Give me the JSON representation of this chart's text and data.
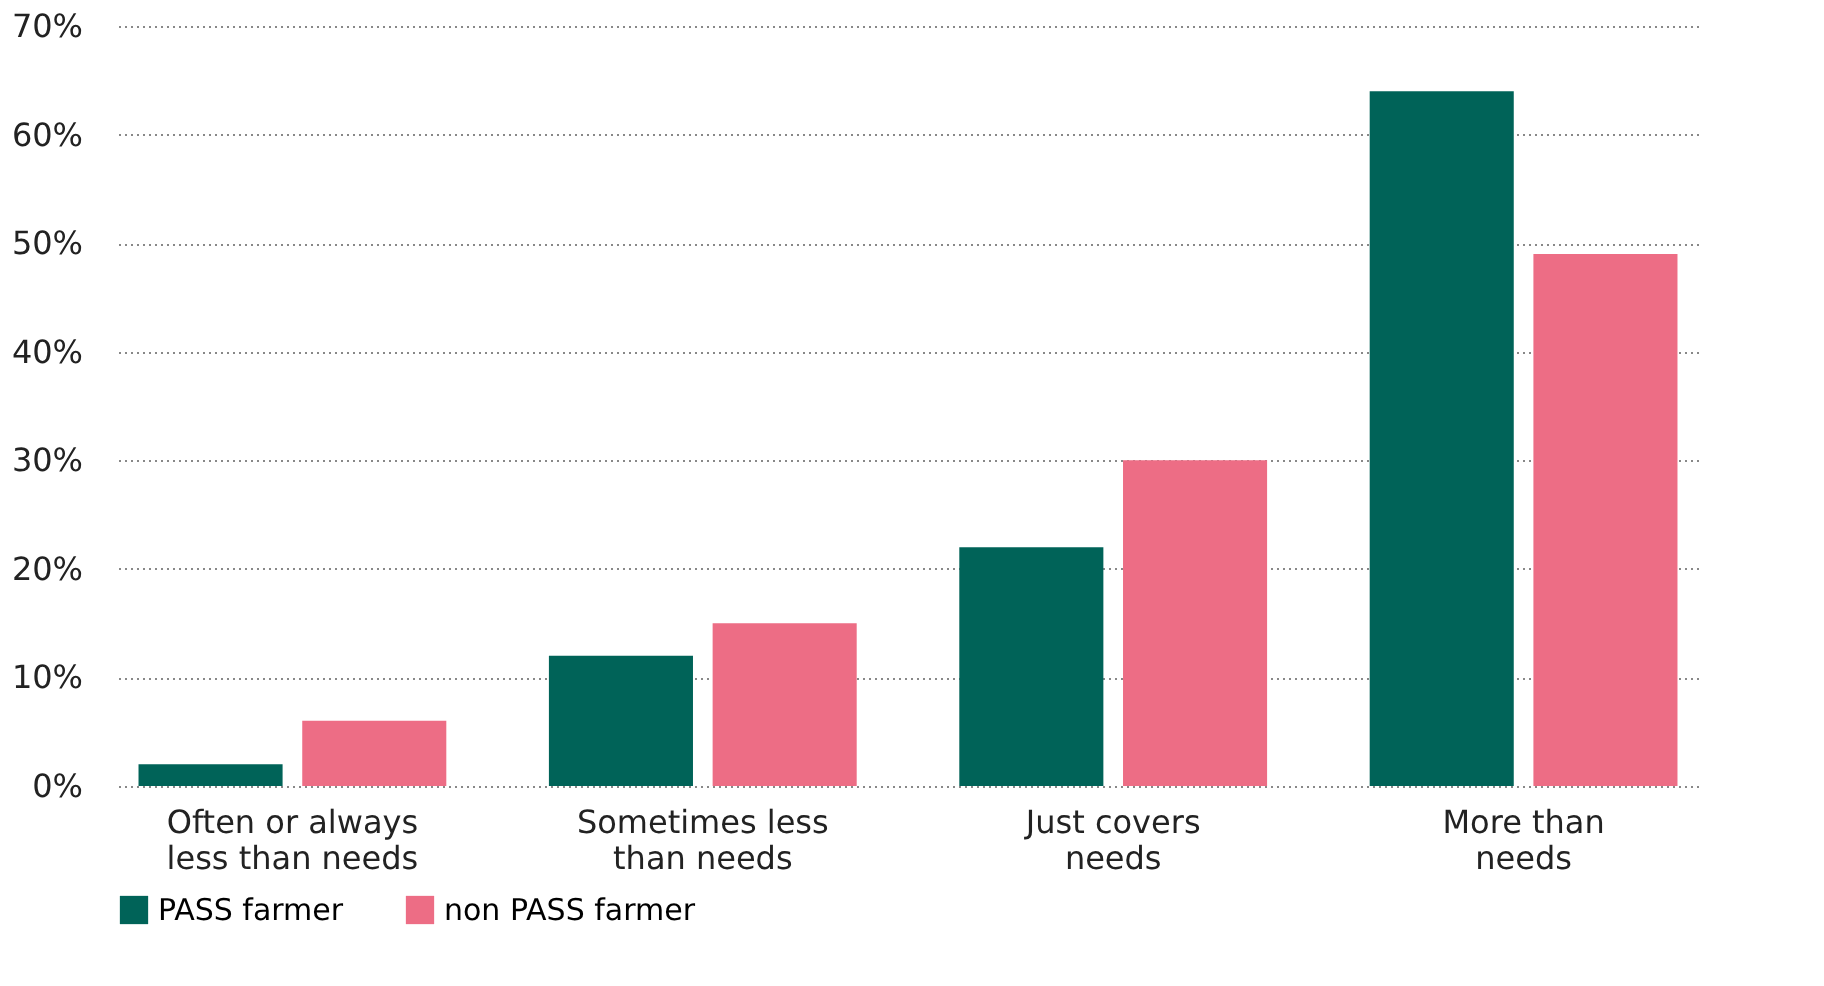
{
  "chart_data": {
    "type": "bar",
    "categories": [
      "Often or always\nless than needs",
      "Sometimes less\nthan needs",
      "Just covers\nneeds",
      "More than\nneeds"
    ],
    "series": [
      {
        "name": "PASS farmer",
        "color": "#006358",
        "values": [
          2,
          12,
          22,
          64
        ]
      },
      {
        "name": "non PASS farmer",
        "color": "#ed6d85",
        "values": [
          6,
          15,
          30,
          49
        ]
      }
    ],
    "ylim": [
      0,
      70
    ],
    "yticks": [
      {
        "value": 0,
        "label": "0%"
      },
      {
        "value": 10,
        "label": "10%"
      },
      {
        "value": 20,
        "label": "20%"
      },
      {
        "value": 30,
        "label": "30%"
      },
      {
        "value": 40,
        "label": "40%"
      },
      {
        "value": 50,
        "label": "50%"
      },
      {
        "value": 60,
        "label": "60%"
      },
      {
        "value": 70,
        "label": "70%"
      }
    ],
    "grid": "y",
    "legend": "bottom left"
  }
}
